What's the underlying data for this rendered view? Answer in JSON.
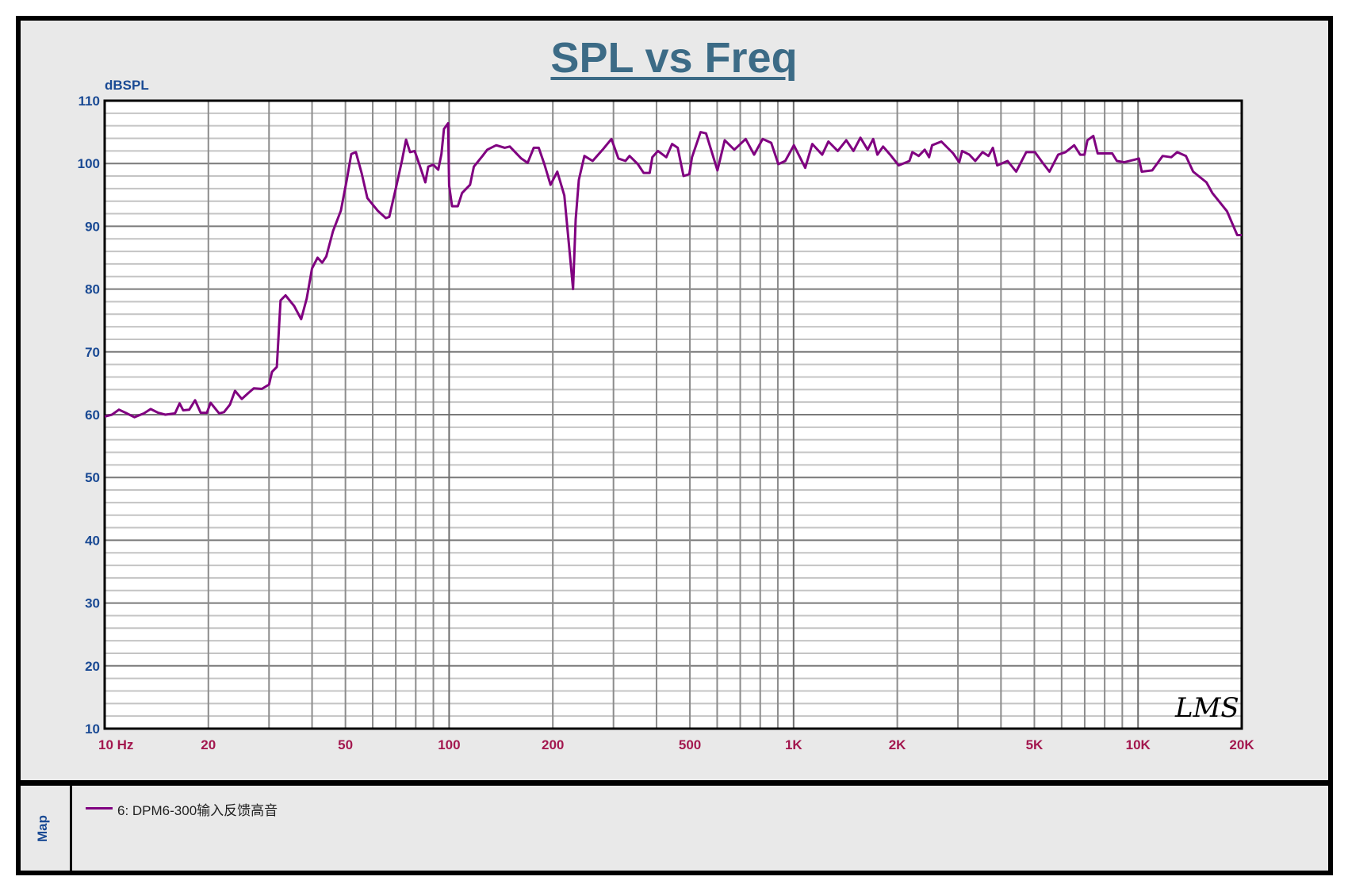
{
  "chart_data": {
    "type": "line",
    "title": "SPL vs Freq",
    "ylabel": "dBSPL",
    "xlabel": "",
    "x_scale": "log",
    "xlim": [
      10,
      20000
    ],
    "ylim": [
      10,
      110
    ],
    "grid": true,
    "x_tick_labels": [
      {
        "value": 10,
        "label": "10  Hz"
      },
      {
        "value": 20,
        "label": "20"
      },
      {
        "value": 50,
        "label": "50"
      },
      {
        "value": 100,
        "label": "100"
      },
      {
        "value": 200,
        "label": "200"
      },
      {
        "value": 500,
        "label": "500"
      },
      {
        "value": 1000,
        "label": "1K"
      },
      {
        "value": 2000,
        "label": "2K"
      },
      {
        "value": 5000,
        "label": "5K"
      },
      {
        "value": 10000,
        "label": "10K"
      },
      {
        "value": 20000,
        "label": "20K"
      }
    ],
    "y_ticks": [
      10,
      20,
      30,
      40,
      50,
      60,
      70,
      80,
      90,
      100,
      110
    ],
    "legend_placement": "bottom panel",
    "watermark": "LMS",
    "series": [
      {
        "name": "6: DPM6-300输入反馈高音",
        "color": "#800080",
        "points": [
          [
            10,
            59.7
          ],
          [
            10.5,
            60
          ],
          [
            11,
            60.8
          ],
          [
            11.5,
            60.3
          ],
          [
            12.2,
            59.6
          ],
          [
            13,
            60.2
          ],
          [
            13.6,
            60.9
          ],
          [
            14.3,
            60.3
          ],
          [
            15,
            60
          ],
          [
            16,
            60.2
          ],
          [
            16.5,
            61.8
          ],
          [
            16.9,
            60.7
          ],
          [
            17.6,
            60.8
          ],
          [
            18.3,
            62.3
          ],
          [
            19,
            60.3
          ],
          [
            19.8,
            60.3
          ],
          [
            20.3,
            61.9
          ],
          [
            21.5,
            60.2
          ],
          [
            22.2,
            60.4
          ],
          [
            23.1,
            61.6
          ],
          [
            23.9,
            63.8
          ],
          [
            25,
            62.5
          ],
          [
            26.2,
            63.5
          ],
          [
            27.1,
            64.2
          ],
          [
            28.6,
            64.1
          ],
          [
            30,
            64.8
          ],
          [
            30.6,
            66.8
          ],
          [
            31.6,
            67.6
          ],
          [
            32.4,
            78.2
          ],
          [
            33.5,
            79
          ],
          [
            35.5,
            77.3
          ],
          [
            37.2,
            75.2
          ],
          [
            38.6,
            78.5
          ],
          [
            40,
            83.3
          ],
          [
            41.5,
            85
          ],
          [
            42.8,
            84.2
          ],
          [
            44,
            85.2
          ],
          [
            46,
            89.2
          ],
          [
            48.5,
            92.5
          ],
          [
            50.5,
            97.5
          ],
          [
            52,
            101.5
          ],
          [
            53.6,
            101.8
          ],
          [
            55.7,
            98.5
          ],
          [
            57.9,
            94.5
          ],
          [
            62,
            92.5
          ],
          [
            65.5,
            91.3
          ],
          [
            67,
            91.5
          ],
          [
            70,
            96
          ],
          [
            73,
            100.5
          ],
          [
            75,
            103.8
          ],
          [
            77,
            101.8
          ],
          [
            79.4,
            102
          ],
          [
            82,
            99.8
          ],
          [
            85.3,
            97
          ],
          [
            87,
            99.5
          ],
          [
            90,
            99.8
          ],
          [
            93,
            99
          ],
          [
            95,
            101.5
          ],
          [
            96.6,
            105.5
          ],
          [
            99.3,
            106.4
          ],
          [
            100,
            96.5
          ],
          [
            102,
            93.2
          ],
          [
            106,
            93.2
          ],
          [
            109,
            95.3
          ],
          [
            115,
            96.6
          ],
          [
            118,
            99.5
          ],
          [
            125,
            101.2
          ],
          [
            129,
            102.2
          ],
          [
            137,
            102.9
          ],
          [
            145,
            102.5
          ],
          [
            150,
            102.7
          ],
          [
            162,
            100.8
          ],
          [
            169,
            100.1
          ],
          [
            176,
            102.5
          ],
          [
            182,
            102.5
          ],
          [
            189,
            99.9
          ],
          [
            197,
            96.6
          ],
          [
            206,
            98.7
          ],
          [
            216,
            94.9
          ],
          [
            224,
            85.6
          ],
          [
            229,
            80
          ],
          [
            233,
            91.1
          ],
          [
            238,
            97.4
          ],
          [
            247,
            101.2
          ],
          [
            261,
            100.4
          ],
          [
            279,
            102.2
          ],
          [
            296,
            103.9
          ],
          [
            310,
            100.8
          ],
          [
            325,
            100.4
          ],
          [
            334,
            101.2
          ],
          [
            353,
            99.9
          ],
          [
            367,
            98.5
          ],
          [
            382,
            98.5
          ],
          [
            389,
            101
          ],
          [
            404,
            102
          ],
          [
            427,
            101
          ],
          [
            444,
            103.1
          ],
          [
            461,
            102.5
          ],
          [
            479,
            98
          ],
          [
            498,
            98.3
          ],
          [
            507,
            101
          ],
          [
            537,
            105
          ],
          [
            557,
            104.8
          ],
          [
            601,
            98.9
          ],
          [
            631,
            103.7
          ],
          [
            673,
            102.2
          ],
          [
            726,
            103.9
          ],
          [
            768,
            101.4
          ],
          [
            813,
            103.9
          ],
          [
            861,
            103.3
          ],
          [
            903,
            99.9
          ],
          [
            946,
            100.4
          ],
          [
            1002,
            102.9
          ],
          [
            1081,
            99.3
          ],
          [
            1133,
            103.1
          ],
          [
            1211,
            101.4
          ],
          [
            1262,
            103.5
          ],
          [
            1343,
            102
          ],
          [
            1422,
            103.7
          ],
          [
            1492,
            102
          ],
          [
            1563,
            104.1
          ],
          [
            1640,
            102.2
          ],
          [
            1702,
            103.9
          ],
          [
            1751,
            101.4
          ],
          [
            1819,
            102.7
          ],
          [
            1907,
            101.4
          ],
          [
            2018,
            99.7
          ],
          [
            2169,
            100.4
          ],
          [
            2212,
            101.8
          ],
          [
            2308,
            101.2
          ],
          [
            2403,
            102.2
          ],
          [
            2474,
            101
          ],
          [
            2524,
            102.9
          ],
          [
            2685,
            103.5
          ],
          [
            2907,
            101.6
          ],
          [
            3025,
            100.2
          ],
          [
            3086,
            102
          ],
          [
            3238,
            101.4
          ],
          [
            3368,
            100.4
          ],
          [
            3537,
            101.8
          ],
          [
            3679,
            101.2
          ],
          [
            3788,
            102.5
          ],
          [
            3901,
            99.7
          ],
          [
            4180,
            100.4
          ],
          [
            4427,
            98.7
          ],
          [
            4735,
            101.8
          ],
          [
            5021,
            101.8
          ],
          [
            5270,
            100.2
          ],
          [
            5532,
            98.7
          ],
          [
            5863,
            101.4
          ],
          [
            6157,
            101.8
          ],
          [
            6527,
            102.9
          ],
          [
            6790,
            101.4
          ],
          [
            6993,
            101.4
          ],
          [
            7130,
            103.7
          ],
          [
            7414,
            104.4
          ],
          [
            7633,
            101.6
          ],
          [
            8418,
            101.6
          ],
          [
            8680,
            100.4
          ],
          [
            9116,
            100.2
          ],
          [
            9765,
            100.6
          ],
          [
            10056,
            100.8
          ],
          [
            10252,
            98.7
          ],
          [
            10992,
            98.9
          ],
          [
            11783,
            101.2
          ],
          [
            12493,
            101
          ],
          [
            12992,
            101.8
          ],
          [
            13771,
            101.2
          ],
          [
            14454,
            98.7
          ],
          [
            15800,
            97
          ],
          [
            16430,
            95.3
          ],
          [
            18120,
            92.4
          ],
          [
            19400,
            88.6
          ],
          [
            20000,
            88.6
          ]
        ]
      }
    ]
  },
  "legend": {
    "panel_label": "Map",
    "entry": "6: DPM6-300输入反馈高音"
  },
  "colors": {
    "curve": "#800080",
    "title": "#3c6b86",
    "y_ticks": "#1a4a94",
    "x_ticks": "#a3174e"
  }
}
